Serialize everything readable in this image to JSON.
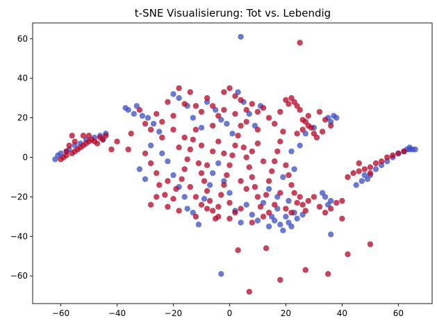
{
  "chart_data": {
    "type": "scatter",
    "title": "t-SNE Visualisierung: Tot vs. Lebendig",
    "xlabel": "",
    "ylabel": "",
    "xlim": [
      -70,
      72
    ],
    "ylim": [
      -74,
      68
    ],
    "xticks": [
      -60,
      -40,
      -20,
      0,
      20,
      40,
      60
    ],
    "yticks": [
      -60,
      -40,
      -20,
      0,
      20,
      40,
      60
    ],
    "xtick_labels": [
      "−60",
      "−40",
      "−20",
      "0",
      "20",
      "40",
      "60"
    ],
    "ytick_labels": [
      "−60",
      "−40",
      "−20",
      "0",
      "20",
      "40",
      "60"
    ],
    "grid": false,
    "legend": "none",
    "series": [
      {
        "color": "#3b4cc0",
        "points": [
          [
            -62,
            -1
          ],
          [
            -61,
            1
          ],
          [
            -60,
            2
          ],
          [
            -58,
            3
          ],
          [
            -57,
            4
          ],
          [
            -55,
            6
          ],
          [
            -53,
            7
          ],
          [
            -51,
            9
          ],
          [
            -48,
            10
          ],
          [
            -46,
            11
          ],
          [
            -44,
            12
          ],
          [
            -45,
            9
          ],
          [
            -37,
            25
          ],
          [
            -36,
            24
          ],
          [
            -34,
            22
          ],
          [
            -33,
            26
          ],
          [
            -31,
            21
          ],
          [
            -29,
            20
          ],
          [
            -27,
            17
          ],
          [
            -25,
            13
          ],
          [
            -28,
            6
          ],
          [
            -32,
            -6
          ],
          [
            -30,
            -11
          ],
          [
            -20,
            32
          ],
          [
            -18,
            30
          ],
          [
            -15,
            26
          ],
          [
            -13,
            20
          ],
          [
            -10,
            15
          ],
          [
            -8,
            28
          ],
          [
            -5,
            24
          ],
          [
            -3,
            19
          ],
          [
            -1,
            17
          ],
          [
            1,
            12
          ],
          [
            3,
            33
          ],
          [
            5,
            28
          ],
          [
            7,
            22
          ],
          [
            9,
            16
          ],
          [
            11,
            26
          ],
          [
            -24,
            2
          ],
          [
            -22,
            -2
          ],
          [
            -20,
            -9
          ],
          [
            -18,
            -15
          ],
          [
            -16,
            -20
          ],
          [
            -15,
            -26
          ],
          [
            -13,
            -28
          ],
          [
            -11,
            -34
          ],
          [
            -9,
            -21
          ],
          [
            -7,
            -14
          ],
          [
            -6,
            -8
          ],
          [
            -4,
            -3
          ],
          [
            -2,
            -12
          ],
          [
            0,
            -18
          ],
          [
            2,
            -27
          ],
          [
            4,
            -33
          ],
          [
            6,
            -24
          ],
          [
            8,
            -29
          ],
          [
            10,
            -32
          ],
          [
            12,
            -23
          ],
          [
            14,
            -35
          ],
          [
            15,
            -30
          ],
          [
            16,
            -32
          ],
          [
            17,
            -26
          ],
          [
            18,
            -34
          ],
          [
            19,
            -37
          ],
          [
            20,
            -30
          ],
          [
            21,
            -33
          ],
          [
            22,
            -35
          ],
          [
            23,
            -28
          ],
          [
            24,
            -31
          ],
          [
            26,
            -29
          ],
          [
            14,
            -16
          ],
          [
            17,
            -20
          ],
          [
            19,
            -10
          ],
          [
            21,
            -22
          ],
          [
            22,
            3
          ],
          [
            23,
            -6
          ],
          [
            25,
            6
          ],
          [
            27,
            12
          ],
          [
            30,
            15
          ],
          [
            33,
            -18
          ],
          [
            34,
            -20
          ],
          [
            35,
            -24
          ],
          [
            36,
            -22
          ],
          [
            35,
            20
          ],
          [
            36,
            18
          ],
          [
            37,
            21
          ],
          [
            38,
            20
          ],
          [
            45,
            -14
          ],
          [
            47,
            -12
          ],
          [
            48,
            -9
          ],
          [
            49,
            -11
          ],
          [
            50,
            -9
          ],
          [
            52,
            -6
          ],
          [
            54,
            -4
          ],
          [
            56,
            -2
          ],
          [
            58,
            0
          ],
          [
            60,
            2
          ],
          [
            62,
            3
          ],
          [
            63,
            4
          ],
          [
            64,
            4
          ],
          [
            65,
            4
          ],
          [
            66,
            4
          ],
          [
            64,
            5
          ],
          [
            4,
            61
          ],
          [
            -3,
            -59
          ],
          [
            36,
            -39
          ]
        ]
      },
      {
        "color": "#b40426",
        "points": [
          [
            -60,
            -1
          ],
          [
            -59,
            0
          ],
          [
            -58,
            1
          ],
          [
            -56,
            2
          ],
          [
            -55,
            3
          ],
          [
            -54,
            4
          ],
          [
            -53,
            5
          ],
          [
            -52,
            6
          ],
          [
            -51,
            7
          ],
          [
            -50,
            8
          ],
          [
            -49,
            9
          ],
          [
            -48,
            8
          ],
          [
            -47,
            7
          ],
          [
            -46,
            10
          ],
          [
            -45,
            9
          ],
          [
            -44,
            11
          ],
          [
            -56,
            11
          ],
          [
            -52,
            11
          ],
          [
            -50,
            11
          ],
          [
            -42,
            4
          ],
          [
            -40,
            8
          ],
          [
            -55,
            8
          ],
          [
            -57,
            6
          ],
          [
            -58,
            3
          ],
          [
            -36,
            4
          ],
          [
            -35,
            12
          ],
          [
            -32,
            24
          ],
          [
            -30,
            17
          ],
          [
            -28,
            14
          ],
          [
            -26,
            22
          ],
          [
            -24,
            18
          ],
          [
            -22,
            28
          ],
          [
            -20,
            21
          ],
          [
            -18,
            35
          ],
          [
            -16,
            27
          ],
          [
            -14,
            33
          ],
          [
            -12,
            26
          ],
          [
            -10,
            23
          ],
          [
            -8,
            30
          ],
          [
            -6,
            26
          ],
          [
            -4,
            21
          ],
          [
            -2,
            33
          ],
          [
            0,
            35
          ],
          [
            2,
            31
          ],
          [
            4,
            29
          ],
          [
            6,
            24
          ],
          [
            8,
            27
          ],
          [
            10,
            23
          ],
          [
            12,
            25
          ],
          [
            14,
            20
          ],
          [
            16,
            17
          ],
          [
            18,
            23
          ],
          [
            20,
            29
          ],
          [
            22,
            30
          ],
          [
            23,
            28
          ],
          [
            24,
            26
          ],
          [
            25,
            24
          ],
          [
            21,
            27
          ],
          [
            26,
            19
          ],
          [
            27,
            18
          ],
          [
            28,
            16
          ],
          [
            29,
            15
          ],
          [
            30,
            12
          ],
          [
            31,
            10
          ],
          [
            26,
            14
          ],
          [
            24,
            12
          ],
          [
            28,
            21
          ],
          [
            32,
            23
          ],
          [
            34,
            19
          ],
          [
            36,
            16
          ],
          [
            33,
            13
          ],
          [
            -30,
            2
          ],
          [
            -28,
            -3
          ],
          [
            -26,
            -8
          ],
          [
            -25,
            -14
          ],
          [
            -23,
            -19
          ],
          [
            -22,
            -25
          ],
          [
            -20,
            -21
          ],
          [
            -19,
            -16
          ],
          [
            -17,
            -11
          ],
          [
            -16,
            -6
          ],
          [
            -15,
            -1
          ],
          [
            -14,
            4
          ],
          [
            -13,
            9
          ],
          [
            -12,
            14
          ],
          [
            -11,
            -3
          ],
          [
            -10,
            -8
          ],
          [
            -9,
            -12
          ],
          [
            -8,
            -17
          ],
          [
            -7,
            -22
          ],
          [
            -6,
            -27
          ],
          [
            -5,
            -31
          ],
          [
            -4,
            -25
          ],
          [
            -3,
            -19
          ],
          [
            -2,
            -14
          ],
          [
            -1,
            -9
          ],
          [
            0,
            -4
          ],
          [
            1,
            1
          ],
          [
            2,
            6
          ],
          [
            3,
            11
          ],
          [
            4,
            16
          ],
          [
            5,
            5
          ],
          [
            6,
            0
          ],
          [
            7,
            -5
          ],
          [
            8,
            -10
          ],
          [
            9,
            -15
          ],
          [
            10,
            -20
          ],
          [
            11,
            -25
          ],
          [
            12,
            -30
          ],
          [
            13,
            -19
          ],
          [
            14,
            -12
          ],
          [
            15,
            -7
          ],
          [
            16,
            -2
          ],
          [
            17,
            3
          ],
          [
            18,
            8
          ],
          [
            19,
            13
          ],
          [
            20,
            -4
          ],
          [
            21,
            -9
          ],
          [
            22,
            -14
          ],
          [
            23,
            -18
          ],
          [
            24,
            -23
          ],
          [
            25,
            -20
          ],
          [
            26,
            -24
          ],
          [
            27,
            -27
          ],
          [
            28,
            -22
          ],
          [
            30,
            -20
          ],
          [
            32,
            -25
          ],
          [
            34,
            -28
          ],
          [
            36,
            -26
          ],
          [
            38,
            -23
          ],
          [
            40,
            -22
          ],
          [
            -18,
            5
          ],
          [
            -16,
            10
          ],
          [
            -14,
            -15
          ],
          [
            -12,
            -20
          ],
          [
            -10,
            -24
          ],
          [
            -8,
            -4
          ],
          [
            -6,
            3
          ],
          [
            -4,
            8
          ],
          [
            -2,
            2
          ],
          [
            0,
            -23
          ],
          [
            2,
            -28
          ],
          [
            4,
            -12
          ],
          [
            6,
            -16
          ],
          [
            8,
            3
          ],
          [
            10,
            7
          ],
          [
            12,
            -2
          ],
          [
            14,
            -28
          ],
          [
            16,
            -24
          ],
          [
            18,
            -18
          ],
          [
            20,
            -26
          ],
          [
            22,
            -28
          ],
          [
            -2,
            24
          ],
          [
            2,
            22
          ],
          [
            6,
            18
          ],
          [
            10,
            14
          ],
          [
            -6,
            16
          ],
          [
            -10,
            6
          ],
          [
            -20,
            14
          ],
          [
            -24,
            10
          ],
          [
            -26,
            -20
          ],
          [
            -28,
            -24
          ],
          [
            -22,
            -12
          ],
          [
            -18,
            -27
          ],
          [
            -12,
            -30
          ],
          [
            -8,
            -26
          ],
          [
            -4,
            -30
          ],
          [
            0,
            -31
          ],
          [
            4,
            -26
          ],
          [
            8,
            -33
          ],
          [
            42,
            -10
          ],
          [
            44,
            -8
          ],
          [
            46,
            -7
          ],
          [
            48,
            -6
          ],
          [
            50,
            -5
          ],
          [
            52,
            -3
          ],
          [
            54,
            -2
          ],
          [
            56,
            0
          ],
          [
            58,
            1
          ],
          [
            60,
            2
          ],
          [
            62,
            3
          ],
          [
            46,
            -3
          ],
          [
            50,
            -8
          ],
          [
            25,
            58
          ],
          [
            3,
            -47
          ],
          [
            13,
            -46
          ],
          [
            27,
            -57
          ],
          [
            42,
            -49
          ],
          [
            50,
            -44
          ],
          [
            35,
            -59
          ],
          [
            18,
            -62
          ],
          [
            7,
            -68
          ],
          [
            40,
            -31
          ]
        ]
      }
    ]
  }
}
